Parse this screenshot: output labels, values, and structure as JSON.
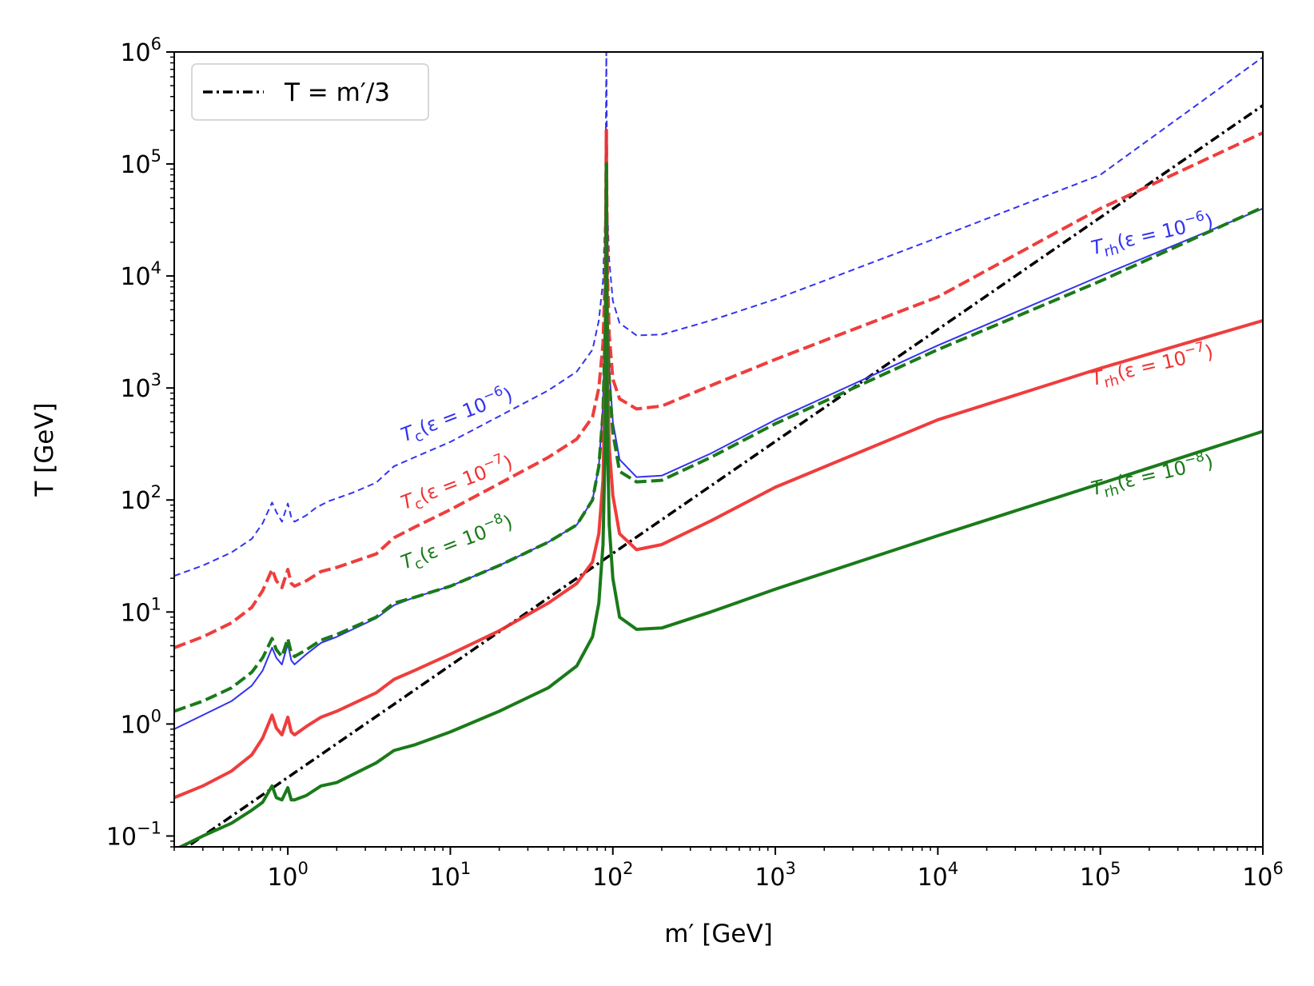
{
  "chart_data": {
    "type": "line",
    "title": "",
    "xlabel": "m′ [GeV]",
    "ylabel": "T [GeV]",
    "xscale": "log",
    "yscale": "log",
    "xlim": [
      0.2,
      1000000
    ],
    "ylim": [
      0.08,
      1000000
    ],
    "x_ticks": [
      {
        "base": "10",
        "exp": "0",
        "value": 1
      },
      {
        "base": "10",
        "exp": "1",
        "value": 10
      },
      {
        "base": "10",
        "exp": "2",
        "value": 100
      },
      {
        "base": "10",
        "exp": "3",
        "value": 1000
      },
      {
        "base": "10",
        "exp": "4",
        "value": 10000
      },
      {
        "base": "10",
        "exp": "5",
        "value": 100000
      },
      {
        "base": "10",
        "exp": "6",
        "value": 1000000
      }
    ],
    "y_ticks": [
      {
        "base": "10",
        "exp": "−1",
        "value": 0.1
      },
      {
        "base": "10",
        "exp": "0",
        "value": 1
      },
      {
        "base": "10",
        "exp": "1",
        "value": 10
      },
      {
        "base": "10",
        "exp": "2",
        "value": 100
      },
      {
        "base": "10",
        "exp": "3",
        "value": 1000
      },
      {
        "base": "10",
        "exp": "4",
        "value": 10000
      },
      {
        "base": "10",
        "exp": "5",
        "value": 100000
      },
      {
        "base": "10",
        "exp": "6",
        "value": 1000000
      }
    ],
    "legend": {
      "location": "upper-left",
      "entries": [
        {
          "label": "T = m′/3",
          "series": "ref"
        }
      ]
    },
    "series": [
      {
        "id": "tc6",
        "name": "T_c(ε=10^−6)",
        "color": "#3333ee",
        "style": "dashed-thin",
        "label_main": "T",
        "label_sub": "c",
        "label_eps": "(ε = 10",
        "label_exp": "−6",
        "label_close": ")",
        "label_at": [
          5.2,
          330
        ],
        "label_angle_deg": -21,
        "points": [
          [
            0.2,
            21
          ],
          [
            0.3,
            26
          ],
          [
            0.45,
            34
          ],
          [
            0.6,
            45
          ],
          [
            0.7,
            62
          ],
          [
            0.8,
            95
          ],
          [
            0.85,
            78
          ],
          [
            0.92,
            64
          ],
          [
            1.0,
            93
          ],
          [
            1.05,
            70
          ],
          [
            1.1,
            64
          ],
          [
            1.3,
            73
          ],
          [
            1.5,
            86
          ],
          [
            1.8,
            98
          ],
          [
            2.5,
            116
          ],
          [
            3.5,
            143
          ],
          [
            4.5,
            200
          ],
          [
            6,
            240
          ],
          [
            10,
            330
          ],
          [
            20,
            560
          ],
          [
            40,
            950
          ],
          [
            60,
            1400
          ],
          [
            75,
            2200
          ],
          [
            82,
            4000
          ],
          [
            87,
            9000
          ],
          [
            90,
            40000
          ],
          [
            91.2,
            1000000
          ],
          [
            92.5,
            40000
          ],
          [
            95,
            14000
          ],
          [
            100,
            6000
          ],
          [
            110,
            3800
          ],
          [
            140,
            2950
          ],
          [
            200,
            3000
          ],
          [
            400,
            4000
          ],
          [
            1000,
            6200
          ],
          [
            10000,
            22000
          ],
          [
            100000,
            80000
          ],
          [
            1000000,
            900000
          ]
        ]
      },
      {
        "id": "tc7",
        "name": "T_c(ε=10^−7)",
        "color": "#ee3333",
        "style": "dashed",
        "label_main": "T",
        "label_sub": "c",
        "label_eps": "(ε = 10",
        "label_exp": "−7",
        "label_close": ")",
        "label_at": [
          5.2,
          82
        ],
        "label_angle_deg": -21,
        "points": [
          [
            0.2,
            4.8
          ],
          [
            0.3,
            6
          ],
          [
            0.45,
            8
          ],
          [
            0.6,
            11
          ],
          [
            0.7,
            15.5
          ],
          [
            0.8,
            24
          ],
          [
            0.85,
            19
          ],
          [
            0.92,
            16.5
          ],
          [
            1.0,
            24
          ],
          [
            1.05,
            18
          ],
          [
            1.1,
            17
          ],
          [
            1.3,
            19
          ],
          [
            1.6,
            23
          ],
          [
            2,
            25
          ],
          [
            3.5,
            33
          ],
          [
            4.5,
            46
          ],
          [
            6,
            57
          ],
          [
            10,
            82
          ],
          [
            20,
            140
          ],
          [
            40,
            240
          ],
          [
            60,
            350
          ],
          [
            75,
            550
          ],
          [
            82,
            1000
          ],
          [
            87,
            2500
          ],
          [
            90,
            12000
          ],
          [
            91.2,
            200000
          ],
          [
            92.5,
            12000
          ],
          [
            95,
            3000
          ],
          [
            100,
            1200
          ],
          [
            110,
            800
          ],
          [
            140,
            650
          ],
          [
            200,
            690
          ],
          [
            400,
            1050
          ],
          [
            1000,
            1800
          ],
          [
            10000,
            6500
          ],
          [
            100000,
            40000
          ],
          [
            1000000,
            190000
          ]
        ]
      },
      {
        "id": "tc8",
        "name": "T_c(ε=10^−8)",
        "color": "#1a7a1a",
        "style": "dashed",
        "label_main": "T",
        "label_sub": "c",
        "label_eps": "(ε = 10",
        "label_exp": "−8",
        "label_close": ")",
        "label_at": [
          5.2,
          24
        ],
        "label_angle_deg": -21,
        "points": [
          [
            0.2,
            1.3
          ],
          [
            0.3,
            1.6
          ],
          [
            0.45,
            2.1
          ],
          [
            0.6,
            2.9
          ],
          [
            0.7,
            3.9
          ],
          [
            0.8,
            5.8
          ],
          [
            0.85,
            4.6
          ],
          [
            0.92,
            4.0
          ],
          [
            1.0,
            5.8
          ],
          [
            1.05,
            4.3
          ],
          [
            1.1,
            4.0
          ],
          [
            1.3,
            4.6
          ],
          [
            1.6,
            5.6
          ],
          [
            2,
            6.3
          ],
          [
            3.5,
            9
          ],
          [
            4.5,
            12
          ],
          [
            6,
            13.5
          ],
          [
            10,
            17
          ],
          [
            20,
            26
          ],
          [
            40,
            42
          ],
          [
            60,
            60
          ],
          [
            75,
            100
          ],
          [
            82,
            200
          ],
          [
            87,
            600
          ],
          [
            90,
            4000
          ],
          [
            91.2,
            100000
          ],
          [
            92.5,
            4000
          ],
          [
            95,
            1200
          ],
          [
            100,
            400
          ],
          [
            110,
            180
          ],
          [
            140,
            145
          ],
          [
            200,
            150
          ],
          [
            400,
            240
          ],
          [
            1000,
            480
          ],
          [
            10000,
            2200
          ],
          [
            100000,
            9000
          ],
          [
            1000000,
            41000
          ]
        ]
      },
      {
        "id": "trh6",
        "name": "T_rh(ε=10^−6)",
        "color": "#3333ee",
        "style": "solid-thin",
        "label_main": "T",
        "label_sub": "rh",
        "label_eps": "(ε = 10",
        "label_exp": "−6",
        "label_close": ")",
        "label_at": [
          90000,
          15500
        ],
        "label_angle_deg": -13,
        "points": [
          [
            0.2,
            0.9
          ],
          [
            0.3,
            1.2
          ],
          [
            0.45,
            1.6
          ],
          [
            0.6,
            2.2
          ],
          [
            0.7,
            3.0
          ],
          [
            0.8,
            4.8
          ],
          [
            0.85,
            3.9
          ],
          [
            0.92,
            3.4
          ],
          [
            1.0,
            5.2
          ],
          [
            1.05,
            3.7
          ],
          [
            1.1,
            3.4
          ],
          [
            1.3,
            4.2
          ],
          [
            1.6,
            5.3
          ],
          [
            2,
            6.0
          ],
          [
            3.5,
            8.8
          ],
          [
            4.5,
            11.5
          ],
          [
            6,
            13.5
          ],
          [
            10,
            17
          ],
          [
            20,
            26
          ],
          [
            40,
            42
          ],
          [
            60,
            60
          ],
          [
            75,
            100
          ],
          [
            82,
            200
          ],
          [
            87,
            700
          ],
          [
            90,
            6000
          ],
          [
            91.2,
            200000
          ],
          [
            92.5,
            6000
          ],
          [
            95,
            1500
          ],
          [
            100,
            500
          ],
          [
            110,
            230
          ],
          [
            140,
            160
          ],
          [
            200,
            165
          ],
          [
            400,
            260
          ],
          [
            1000,
            520
          ],
          [
            10000,
            2400
          ],
          [
            100000,
            10000
          ],
          [
            1000000,
            40000
          ]
        ]
      },
      {
        "id": "trh7",
        "name": "T_rh(ε=10^−7)",
        "color": "#ee3333",
        "style": "solid",
        "label_main": "T",
        "label_sub": "rh",
        "label_eps": "(ε = 10",
        "label_exp": "−7",
        "label_close": ")",
        "label_at": [
          90000,
          1050
        ],
        "label_angle_deg": -13,
        "points": [
          [
            0.2,
            0.22
          ],
          [
            0.3,
            0.28
          ],
          [
            0.45,
            0.38
          ],
          [
            0.6,
            0.53
          ],
          [
            0.7,
            0.75
          ],
          [
            0.8,
            1.2
          ],
          [
            0.85,
            0.92
          ],
          [
            0.92,
            0.8
          ],
          [
            1.0,
            1.15
          ],
          [
            1.05,
            0.85
          ],
          [
            1.1,
            0.8
          ],
          [
            1.3,
            0.95
          ],
          [
            1.6,
            1.15
          ],
          [
            2,
            1.3
          ],
          [
            3.5,
            1.9
          ],
          [
            4.5,
            2.5
          ],
          [
            6,
            3.0
          ],
          [
            10,
            4.2
          ],
          [
            20,
            6.8
          ],
          [
            40,
            12
          ],
          [
            60,
            18
          ],
          [
            75,
            28
          ],
          [
            82,
            50
          ],
          [
            87,
            150
          ],
          [
            90,
            1500
          ],
          [
            91.2,
            200000
          ],
          [
            92.5,
            1500
          ],
          [
            95,
            300
          ],
          [
            100,
            110
          ],
          [
            110,
            50
          ],
          [
            140,
            36
          ],
          [
            200,
            40
          ],
          [
            400,
            65
          ],
          [
            1000,
            130
          ],
          [
            10000,
            520
          ],
          [
            100000,
            1500
          ],
          [
            1000000,
            4000
          ]
        ]
      },
      {
        "id": "trh8",
        "name": "T_rh(ε=10^−8)",
        "color": "#1a7a1a",
        "style": "solid",
        "label_main": "T",
        "label_sub": "rh",
        "label_eps": "(ε = 10",
        "label_exp": "−8",
        "label_close": ")",
        "label_at": [
          90000,
          110
        ],
        "label_angle_deg": -13,
        "points": [
          [
            0.2,
            0.075
          ],
          [
            0.3,
            0.1
          ],
          [
            0.45,
            0.13
          ],
          [
            0.6,
            0.17
          ],
          [
            0.7,
            0.2
          ],
          [
            0.8,
            0.28
          ],
          [
            0.85,
            0.22
          ],
          [
            0.92,
            0.21
          ],
          [
            1.0,
            0.27
          ],
          [
            1.05,
            0.21
          ],
          [
            1.1,
            0.21
          ],
          [
            1.3,
            0.23
          ],
          [
            1.6,
            0.28
          ],
          [
            2,
            0.3
          ],
          [
            3.5,
            0.45
          ],
          [
            4.5,
            0.58
          ],
          [
            6,
            0.65
          ],
          [
            10,
            0.85
          ],
          [
            20,
            1.3
          ],
          [
            40,
            2.1
          ],
          [
            60,
            3.3
          ],
          [
            75,
            6
          ],
          [
            82,
            12
          ],
          [
            87,
            40
          ],
          [
            90,
            400
          ],
          [
            91.2,
            100000
          ],
          [
            92.5,
            400
          ],
          [
            95,
            60
          ],
          [
            100,
            20
          ],
          [
            110,
            9
          ],
          [
            140,
            7
          ],
          [
            200,
            7.2
          ],
          [
            400,
            10
          ],
          [
            1000,
            16
          ],
          [
            10000,
            48
          ],
          [
            100000,
            140
          ],
          [
            1000000,
            410
          ]
        ]
      },
      {
        "id": "ref",
        "name": "T = m′/3",
        "color": "#000000",
        "style": "dashdot",
        "points": [
          [
            0.2,
            0.0667
          ],
          [
            1000000,
            333333
          ]
        ]
      }
    ]
  }
}
